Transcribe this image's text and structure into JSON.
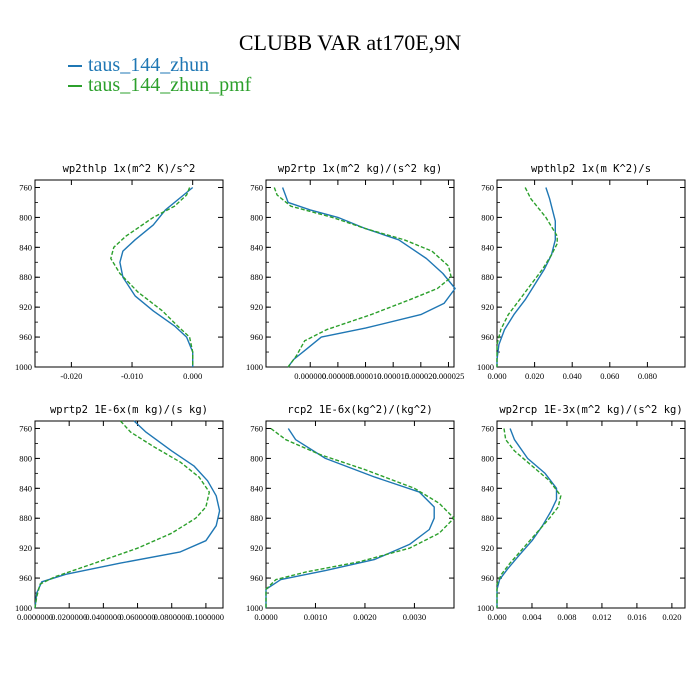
{
  "figure_title": "CLUBB VAR at170E,9N",
  "legend": [
    {
      "label": "taus_144_zhun",
      "color": "#1f77b4",
      "style": "solid"
    },
    {
      "label": "taus_144_zhun_pmf",
      "color": "#2ca02c",
      "style": "dashed"
    }
  ],
  "chart_data": [
    {
      "type": "line",
      "title": "wp2thlp  1x(m^2 K)/s^2",
      "ylim": [
        1000,
        750
      ],
      "yticks": [
        "760",
        "800",
        "840",
        "880",
        "920",
        "960",
        "1000"
      ],
      "xlim": [
        -0.026,
        0.005
      ],
      "xticks": [
        {
          "v": -0.02,
          "l": "-0.020"
        },
        {
          "v": -0.01,
          "l": "-0.010"
        },
        {
          "v": 0,
          "l": "0.000"
        }
      ],
      "series": [
        {
          "name": "taus_144_zhun",
          "color": "#1f77b4",
          "dash": false,
          "points": [
            [
              0,
              760
            ],
            [
              -0.0015,
              770
            ],
            [
              -0.0045,
              790
            ],
            [
              -0.0065,
              810
            ],
            [
              -0.0095,
              830
            ],
            [
              -0.0115,
              845
            ],
            [
              -0.012,
              860
            ],
            [
              -0.0115,
              880
            ],
            [
              -0.0095,
              905
            ],
            [
              -0.0065,
              925
            ],
            [
              -0.003,
              945
            ],
            [
              -0.001,
              960
            ],
            [
              0,
              980
            ],
            [
              0,
              1000
            ]
          ]
        },
        {
          "name": "taus_144_zhun_pmf",
          "color": "#2ca02c",
          "dash": true,
          "points": [
            [
              -0.0005,
              760
            ],
            [
              -0.001,
              770
            ],
            [
              -0.003,
              785
            ],
            [
              -0.0065,
              800
            ],
            [
              -0.011,
              825
            ],
            [
              -0.013,
              840
            ],
            [
              -0.0135,
              855
            ],
            [
              -0.012,
              875
            ],
            [
              -0.009,
              900
            ],
            [
              -0.005,
              925
            ],
            [
              -0.0025,
              945
            ],
            [
              -0.0005,
              960
            ],
            [
              0,
              980
            ],
            [
              0,
              1000
            ]
          ]
        }
      ]
    },
    {
      "type": "line",
      "title": "wp2rtp  1x(m^2 kg)/(s^2 kg)",
      "ylim": [
        1000,
        750
      ],
      "yticks": [
        "760",
        "800",
        "840",
        "880",
        "920",
        "960",
        "1000"
      ],
      "xlim": [
        -8e-06,
        2.6e-05
      ],
      "xticks": [
        {
          "v": 0,
          "l": "0.000000"
        },
        {
          "v": 5e-06,
          "l": "0.000005"
        },
        {
          "v": 1e-05,
          "l": "0.000010"
        },
        {
          "v": 1.5e-05,
          "l": "0.000015"
        },
        {
          "v": 2e-05,
          "l": "0.000020"
        },
        {
          "v": 2.5e-05,
          "l": "0.000025"
        }
      ],
      "series": [
        {
          "name": "taus_144_zhun",
          "color": "#1f77b4",
          "dash": false,
          "points": [
            [
              -5e-06,
              760
            ],
            [
              -4.5e-06,
              770
            ],
            [
              -4e-06,
              780
            ],
            [
              0,
              790
            ],
            [
              5e-06,
              800
            ],
            [
              1e-05,
              815
            ],
            [
              1.6e-05,
              830
            ],
            [
              2.1e-05,
              855
            ],
            [
              2.4e-05,
              875
            ],
            [
              2.62e-05,
              895
            ],
            [
              2.42e-05,
              915
            ],
            [
              2e-05,
              930
            ],
            [
              1e-05,
              948
            ],
            [
              2e-06,
              960
            ],
            [
              -5e-07,
              975
            ],
            [
              -3e-06,
              990
            ],
            [
              -4e-06,
              1000
            ]
          ]
        },
        {
          "name": "taus_144_zhun_pmf",
          "color": "#2ca02c",
          "dash": true,
          "points": [
            [
              -6.5e-06,
              760
            ],
            [
              -6e-06,
              770
            ],
            [
              -3.5e-06,
              785
            ],
            [
              4e-06,
              800
            ],
            [
              1e-05,
              815
            ],
            [
              1.7e-05,
              830
            ],
            [
              2.2e-05,
              845
            ],
            [
              2.5e-05,
              865
            ],
            [
              2.55e-05,
              880
            ],
            [
              2.3e-05,
              895
            ],
            [
              1.8e-05,
              910
            ],
            [
              1.1e-05,
              930
            ],
            [
              3e-06,
              950
            ],
            [
              -1e-06,
              965
            ],
            [
              -2.5e-06,
              985
            ],
            [
              -4e-06,
              1000
            ]
          ]
        }
      ]
    },
    {
      "type": "line",
      "title": "wpthlp2  1x(m K^2)/s",
      "ylim": [
        1000,
        750
      ],
      "yticks": [
        "760",
        "800",
        "840",
        "880",
        "920",
        "960",
        "1000"
      ],
      "xlim": [
        0,
        0.1
      ],
      "xticks": [
        {
          "v": 0,
          "l": "0.000"
        },
        {
          "v": 0.02,
          "l": "0.020"
        },
        {
          "v": 0.04,
          "l": "0.040"
        },
        {
          "v": 0.06,
          "l": "0.060"
        },
        {
          "v": 0.08,
          "l": "0.080"
        }
      ],
      "series": [
        {
          "name": "taus_144_zhun",
          "color": "#1f77b4",
          "dash": false,
          "points": [
            [
              0.026,
              760
            ],
            [
              0.028,
              775
            ],
            [
              0.031,
              805
            ],
            [
              0.031,
              830
            ],
            [
              0.029,
              850
            ],
            [
              0.025,
              870
            ],
            [
              0.02,
              890
            ],
            [
              0.015,
              910
            ],
            [
              0.009,
              930
            ],
            [
              0.004,
              950
            ],
            [
              0.001,
              970
            ],
            [
              0,
              990
            ],
            [
              0,
              1000
            ]
          ]
        },
        {
          "name": "taus_144_zhun_pmf",
          "color": "#2ca02c",
          "dash": true,
          "points": [
            [
              0.015,
              760
            ],
            [
              0.018,
              775
            ],
            [
              0.026,
              800
            ],
            [
              0.032,
              825
            ],
            [
              0.032,
              835
            ],
            [
              0.029,
              850
            ],
            [
              0.024,
              870
            ],
            [
              0.018,
              890
            ],
            [
              0.012,
              910
            ],
            [
              0.006,
              930
            ],
            [
              0.002,
              950
            ],
            [
              0,
              970
            ],
            [
              0,
              1000
            ]
          ]
        }
      ]
    },
    {
      "type": "line",
      "title": "wprtp2  1E-6x(m kg)/(s kg)",
      "ylim": [
        1000,
        750
      ],
      "yticks": [
        "760",
        "800",
        "840",
        "880",
        "920",
        "960",
        "1000"
      ],
      "xlim": [
        0,
        0.11
      ],
      "xticks": [
        {
          "v": 0,
          "l": "0.0000000"
        },
        {
          "v": 0.02,
          "l": "0.0200000"
        },
        {
          "v": 0.04,
          "l": "0.0400000"
        },
        {
          "v": 0.06,
          "l": "0.0600000"
        },
        {
          "v": 0.08,
          "l": "0.0800000"
        },
        {
          "v": 0.1,
          "l": "0.1000000"
        }
      ],
      "series": [
        {
          "name": "taus_144_zhun",
          "color": "#1f77b4",
          "dash": false,
          "points": [
            [
              0.058,
              750
            ],
            [
              0.065,
              765
            ],
            [
              0.08,
              790
            ],
            [
              0.093,
              810
            ],
            [
              0.101,
              830
            ],
            [
              0.106,
              850
            ],
            [
              0.108,
              870
            ],
            [
              0.106,
              890
            ],
            [
              0.1,
              910
            ],
            [
              0.085,
              925
            ],
            [
              0.05,
              940
            ],
            [
              0.018,
              955
            ],
            [
              0.004,
              965
            ],
            [
              0.001,
              980
            ],
            [
              0,
              1000
            ]
          ]
        },
        {
          "name": "taus_144_zhun_pmf",
          "color": "#2ca02c",
          "dash": true,
          "points": [
            [
              0.05,
              750
            ],
            [
              0.056,
              765
            ],
            [
              0.07,
              785
            ],
            [
              0.085,
              805
            ],
            [
              0.096,
              825
            ],
            [
              0.102,
              845
            ],
            [
              0.1,
              865
            ],
            [
              0.094,
              880
            ],
            [
              0.08,
              900
            ],
            [
              0.06,
              920
            ],
            [
              0.035,
              940
            ],
            [
              0.012,
              958
            ],
            [
              0.003,
              968
            ],
            [
              0.001,
              985
            ],
            [
              0,
              1000
            ]
          ]
        }
      ]
    },
    {
      "type": "line",
      "title": "rcp2  1E-6x(kg^2)/(kg^2)",
      "ylim": [
        1000,
        750
      ],
      "yticks": [
        "760",
        "800",
        "840",
        "880",
        "920",
        "960",
        "1000"
      ],
      "xlim": [
        0,
        0.0038
      ],
      "xticks": [
        {
          "v": 0,
          "l": "0.0000"
        },
        {
          "v": 0.001,
          "l": "0.0010"
        },
        {
          "v": 0.002,
          "l": "0.0020"
        },
        {
          "v": 0.003,
          "l": "0.0030"
        }
      ],
      "series": [
        {
          "name": "taus_144_zhun",
          "color": "#1f77b4",
          "dash": false,
          "points": [
            [
              0.00045,
              760
            ],
            [
              0.0006,
              775
            ],
            [
              0.0012,
              800
            ],
            [
              0.0022,
              825
            ],
            [
              0.0031,
              845
            ],
            [
              0.0034,
              865
            ],
            [
              0.0034,
              880
            ],
            [
              0.0033,
              895
            ],
            [
              0.0029,
              915
            ],
            [
              0.0022,
              935
            ],
            [
              0.0012,
              950
            ],
            [
              0.0003,
              962
            ],
            [
              0,
              975
            ],
            [
              0,
              1000
            ]
          ]
        },
        {
          "name": "taus_144_zhun_pmf",
          "color": "#2ca02c",
          "dash": true,
          "points": [
            [
              0.0001,
              760
            ],
            [
              0.0004,
              775
            ],
            [
              0.0011,
              795
            ],
            [
              0.002,
              815
            ],
            [
              0.003,
              840
            ],
            [
              0.0035,
              860
            ],
            [
              0.0038,
              880
            ],
            [
              0.0035,
              900
            ],
            [
              0.0029,
              920
            ],
            [
              0.0019,
              938
            ],
            [
              0.0008,
              952
            ],
            [
              0.0002,
              962
            ],
            [
              0,
              975
            ],
            [
              0,
              1000
            ]
          ]
        }
      ]
    },
    {
      "type": "line",
      "title": "wp2rcp  1E-3x(m^2 kg)/(s^2 kg)",
      "ylim": [
        1000,
        750
      ],
      "yticks": [
        "760",
        "800",
        "840",
        "880",
        "920",
        "960",
        "1000"
      ],
      "xlim": [
        0,
        0.0215
      ],
      "xticks": [
        {
          "v": 0,
          "l": "0.000"
        },
        {
          "v": 0.004,
          "l": "0.004"
        },
        {
          "v": 0.008,
          "l": "0.008"
        },
        {
          "v": 0.012,
          "l": "0.012"
        },
        {
          "v": 0.016,
          "l": "0.016"
        },
        {
          "v": 0.02,
          "l": "0.020"
        }
      ],
      "series": [
        {
          "name": "taus_144_zhun",
          "color": "#1f77b4",
          "dash": false,
          "points": [
            [
              0.0015,
              760
            ],
            [
              0.002,
              775
            ],
            [
              0.0035,
              800
            ],
            [
              0.0055,
              820
            ],
            [
              0.0068,
              840
            ],
            [
              0.0068,
              855
            ],
            [
              0.0062,
              870
            ],
            [
              0.0052,
              890
            ],
            [
              0.004,
              910
            ],
            [
              0.0025,
              930
            ],
            [
              0.0012,
              948
            ],
            [
              0.0003,
              962
            ],
            [
              0,
              975
            ],
            [
              0,
              1000
            ]
          ]
        },
        {
          "name": "taus_144_zhun_pmf",
          "color": "#2ca02c",
          "dash": true,
          "points": [
            [
              0.0008,
              760
            ],
            [
              0.001,
              775
            ],
            [
              0.002,
              790
            ],
            [
              0.004,
              810
            ],
            [
              0.006,
              830
            ],
            [
              0.0073,
              850
            ],
            [
              0.007,
              865
            ],
            [
              0.006,
              880
            ],
            [
              0.0045,
              900
            ],
            [
              0.003,
              920
            ],
            [
              0.0015,
              940
            ],
            [
              0.0005,
              955
            ],
            [
              0,
              968
            ],
            [
              0,
              1000
            ]
          ]
        }
      ]
    }
  ]
}
